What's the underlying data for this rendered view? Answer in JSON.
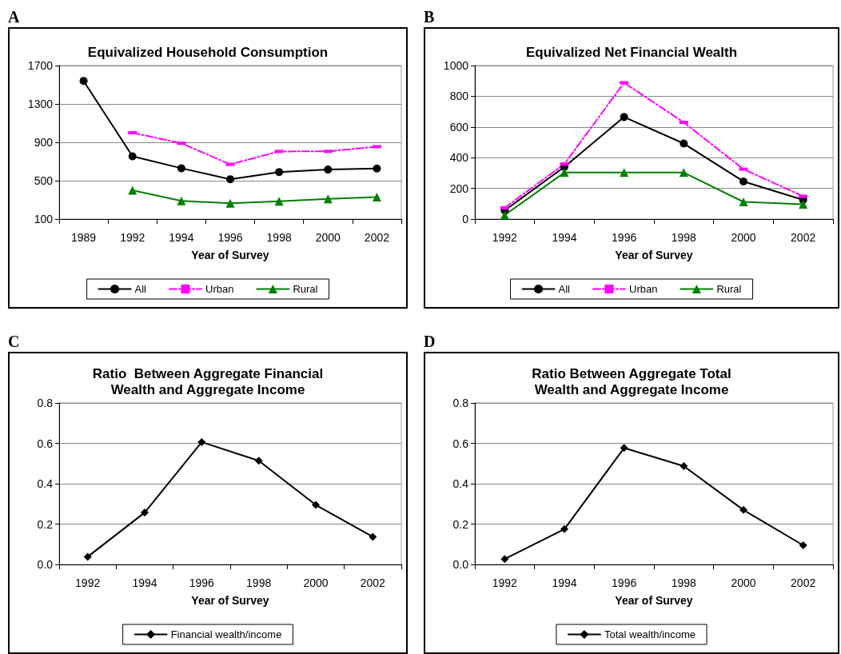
{
  "chart_data": [
    {
      "type": "line",
      "title": "Equivalized Household Consumption",
      "xlabel": "Year of Survey",
      "annotations": [
        "A"
      ],
      "categories": [
        "1989",
        "1992",
        "1994",
        "1996",
        "1998",
        "2000",
        "2002"
      ],
      "ylim": [
        100,
        1700
      ],
      "yticks": [
        100,
        500,
        900,
        1300,
        1700
      ],
      "grid": "y",
      "legend": "bottom",
      "series": [
        {
          "name": "All",
          "color": "#000000",
          "marker": "circle",
          "line_style": "solid",
          "values": [
            1540,
            754,
            630,
            515,
            590,
            616,
            627
          ]
        },
        {
          "name": "Urban",
          "color": "#ff00ff",
          "marker": "square",
          "line_style": "dashed",
          "values": [
            null,
            1000,
            890,
            670,
            805,
            806,
            855
          ]
        },
        {
          "name": "Rural",
          "color": "#008000",
          "marker": "triangle",
          "line_style": "solid",
          "values": [
            null,
            400,
            290,
            265,
            285,
            310,
            330
          ]
        }
      ]
    },
    {
      "type": "line",
      "title": "Equivalized Net Financial Wealth",
      "xlabel": "Year of Survey",
      "annotations": [
        "B"
      ],
      "categories": [
        "1992",
        "1994",
        "1996",
        "1998",
        "2000",
        "2002"
      ],
      "ylim": [
        0,
        1000
      ],
      "yticks": [
        0,
        200,
        400,
        600,
        800,
        1000
      ],
      "grid": "y",
      "legend": "bottom",
      "series": [
        {
          "name": "All",
          "color": "#000000",
          "marker": "circle",
          "line_style": "solid",
          "values": [
            56,
            340,
            665,
            492,
            245,
            125
          ]
        },
        {
          "name": "Urban",
          "color": "#ff00ff",
          "marker": "square",
          "line_style": "dashed",
          "values": [
            73,
            359,
            888,
            630,
            325,
            148
          ]
        },
        {
          "name": "Rural",
          "color": "#008000",
          "marker": "triangle",
          "line_style": "solid",
          "values": [
            26,
            303,
            303,
            303,
            112,
            97
          ]
        }
      ]
    },
    {
      "type": "line",
      "title": "Ratio  Between Aggregate Financial\nWealth and Aggregate Income",
      "xlabel": "Year of Survey",
      "annotations": [
        "C"
      ],
      "categories": [
        "1992",
        "1994",
        "1996",
        "1998",
        "2000",
        "2002"
      ],
      "ylim": [
        0,
        0.8
      ],
      "yticks": [
        {
          "value": 0,
          "label": "0.0"
        },
        0.2,
        0.4,
        0.6,
        0.8
      ],
      "grid": "y",
      "legend": "bottom",
      "series": [
        {
          "name": "Financial wealth/income",
          "color": "#000000",
          "marker": "diamond",
          "line_style": "solid",
          "values": [
            0.038,
            0.257,
            0.606,
            0.514,
            0.295,
            0.137
          ]
        }
      ]
    },
    {
      "type": "line",
      "title": "Ratio Between Aggregate Total\nWealth and Aggregate Income",
      "xlabel": "Year of Survey",
      "annotations": [
        "D"
      ],
      "categories": [
        "1992",
        "1994",
        "1996",
        "1998",
        "2000",
        "2002"
      ],
      "ylim": [
        0,
        0.8
      ],
      "yticks": [
        {
          "value": 0,
          "label": "0.0"
        },
        0.2,
        0.4,
        0.6,
        0.8
      ],
      "grid": "y",
      "legend": "bottom",
      "series": [
        {
          "name": "Total wealth/income",
          "color": "#000000",
          "marker": "diamond",
          "line_style": "solid",
          "values": [
            0.027,
            0.175,
            0.577,
            0.487,
            0.27,
            0.095
          ]
        }
      ]
    }
  ]
}
